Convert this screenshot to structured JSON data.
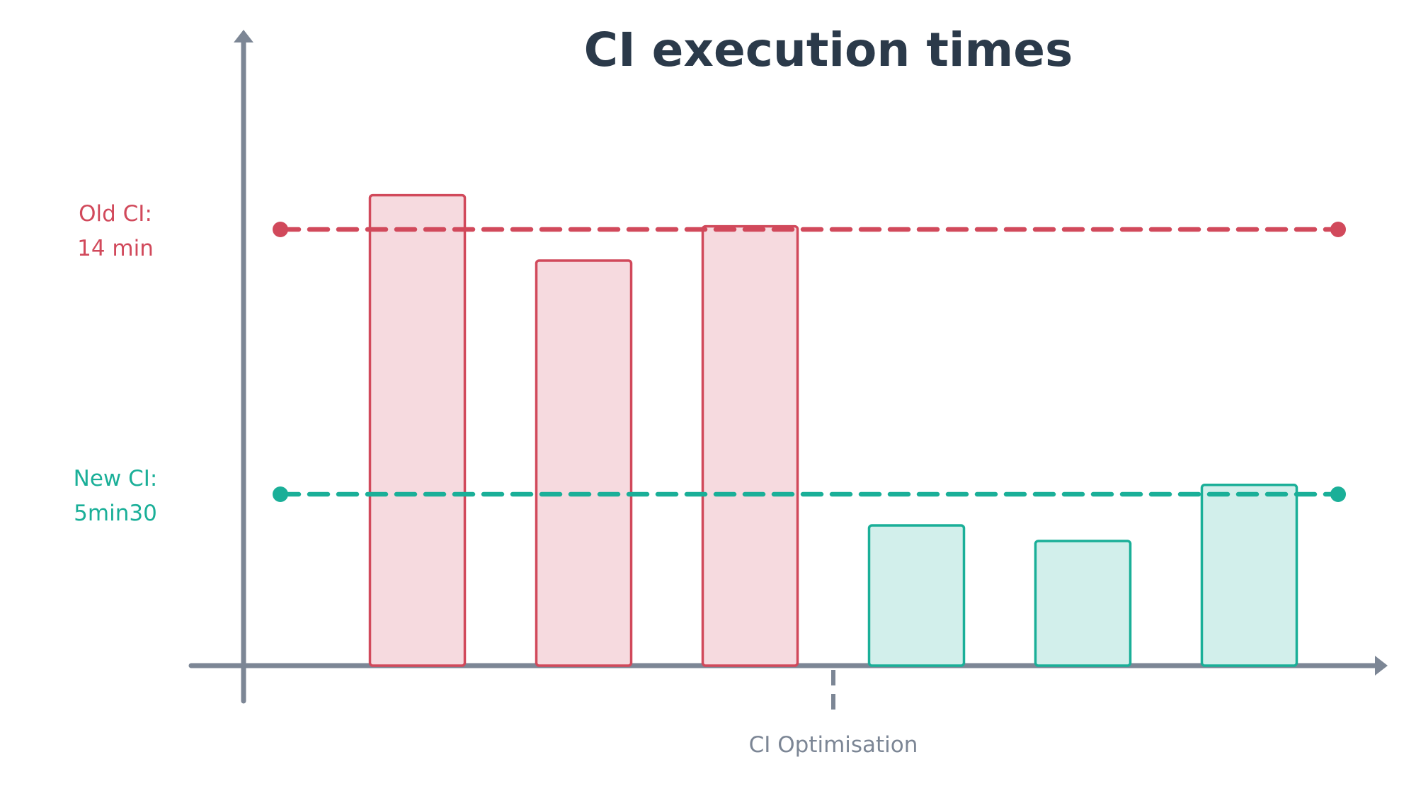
{
  "chart_data": {
    "type": "bar",
    "title": "CI execution times",
    "xlabel": "",
    "ylabel": "",
    "unit": "min",
    "ylim": [
      0,
      20
    ],
    "grid": false,
    "categories": [
      "",
      "",
      "",
      "",
      "",
      ""
    ],
    "series": [
      {
        "values": [
          15.1,
          13.0,
          14.1,
          0,
          0,
          0
        ],
        "color": "#d1495b",
        "fill": "#f6dadf"
      },
      {
        "values": [
          0,
          0,
          0,
          4.5,
          4.0,
          5.8
        ],
        "color": "#1aaf98",
        "fill": "#d2efeb"
      }
    ],
    "reference_lines": [
      {
        "value": 14,
        "label_line1": "Old CI:",
        "label_line2": "14 min",
        "color": "#d1495b"
      },
      {
        "value": 5.5,
        "label_line1": "New CI:",
        "label_line2": "5min30",
        "color": "#1aaf98"
      }
    ],
    "annotations": [
      {
        "text": "CI Optimisation",
        "after_category_index": 2,
        "style": "dashed-tick"
      }
    ],
    "axis_color": "#7c8695",
    "title_color": "#2b3a4a"
  }
}
